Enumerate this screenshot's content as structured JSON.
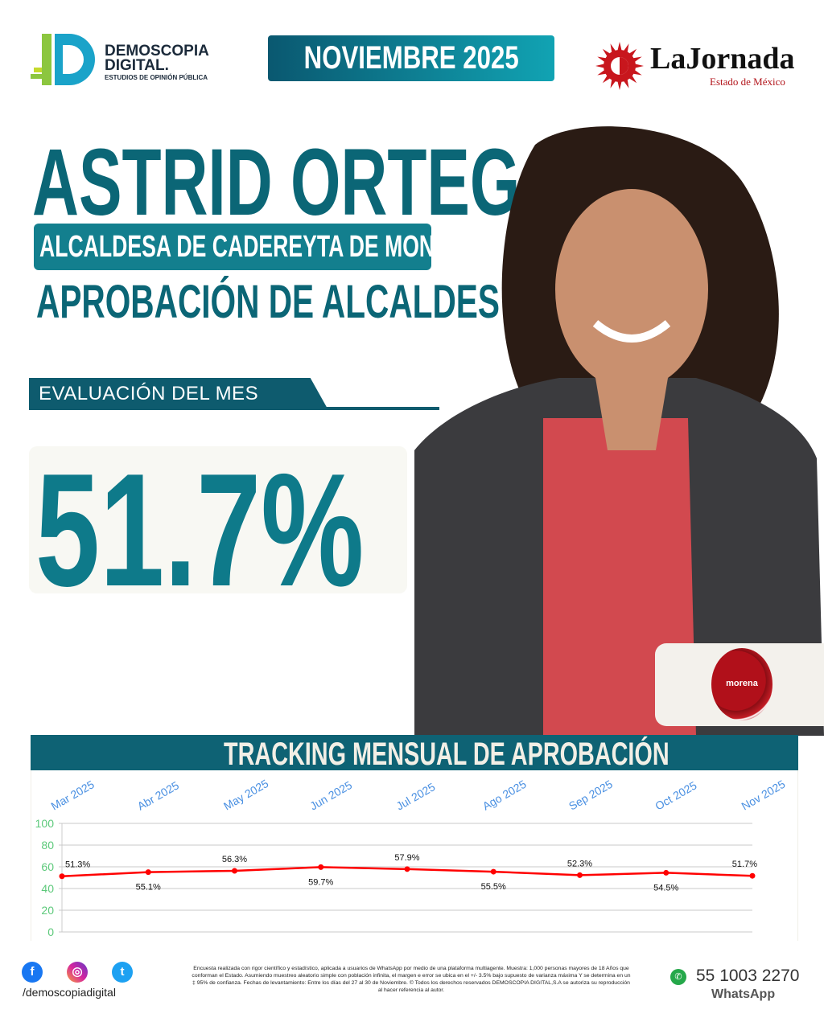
{
  "header": {
    "brand_line1": "DEMOSCOPIA",
    "brand_line2": "DIGITAL.",
    "brand_tagline": "ESTUDIOS DE OPINIÓN PÚBLICA",
    "month": "NOVIEMBRE 2025",
    "partner_name": "LaJornada",
    "partner_sub": "Estado de México"
  },
  "main": {
    "name": "ASTRID ORTEGA",
    "role": "ALCALDESA DE CADEREYTA DE MONTES",
    "subtitle": "APROBACIÓN DE ALCALDES",
    "eval_label": "EVALUACIÓN DEL MES",
    "approval": "51.7%",
    "party": "morena"
  },
  "colors": {
    "teal": "#0b6676",
    "navy": "#0e5b6e",
    "line": "#ff0000",
    "ytick": "#5cc97a",
    "xtick": "#4a90e2"
  },
  "chart_data": {
    "type": "line",
    "title": "TRACKING MENSUAL DE APROBACIÓN",
    "categories": [
      "Mar 2025",
      "Abr 2025",
      "May 2025",
      "Jun 2025",
      "Jul 2025",
      "Ago 2025",
      "Sep 2025",
      "Oct 2025",
      "Nov 2025"
    ],
    "values": [
      51.3,
      55.1,
      56.3,
      59.7,
      57.9,
      55.5,
      52.3,
      54.5,
      51.7
    ],
    "labels": [
      "51.3%",
      "55.1%",
      "56.3%",
      "59.7%",
      "57.9%",
      "55.5%",
      "52.3%",
      "54.5%",
      "51.7%"
    ],
    "yticks": [
      0,
      20,
      40,
      60,
      80,
      100
    ],
    "ylim": [
      0,
      100
    ],
    "grid": true
  },
  "footer": {
    "handle": "/demoscopiadigital",
    "social": [
      "facebook-icon",
      "instagram-icon",
      "twitter-icon"
    ],
    "disclaimer": "Encuesta realizada con rigor científico y estadístico, aplicada a usuarios de WhatsApp por medio de una plataforma multiagente. Muestra: 1,000 personas mayores de 18 Años que conforman el Estado. Asumiendo muestreo aleatorio simple con población infinita, el margen e error se ubica en el +/- 3.5% bajo supuesto de varianza máxima Y se determina en un ‡ 95% de confianza. Fechas de levantamiento: Entre los días del 27 al 30 de Noviembre. © Todos los derechos reservados DEMOSCOPIA DIGITAL,S.A se autoriza su reproducción al hacer referencia al autor.",
    "phone": "55 1003 2270",
    "whatsapp": "WhatsApp"
  }
}
